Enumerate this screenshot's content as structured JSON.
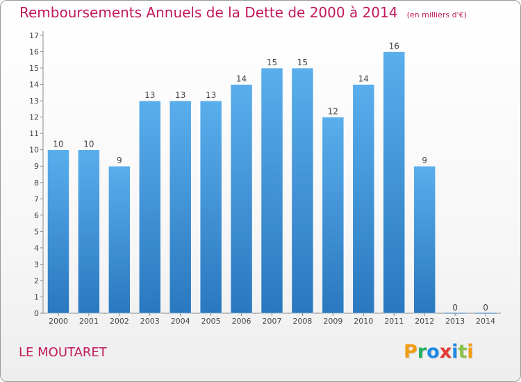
{
  "title": "Remboursements Annuels de la Dette de 2000 à 2014",
  "unit_note": "(en milliers d'€)",
  "location": "LE MOUTARET",
  "logo": {
    "text": "Proxiti",
    "letter_colors": [
      "#f39c12",
      "#27ae60",
      "#1e88e5",
      "#e53935",
      "#1e88e5",
      "#8bc34a",
      "#f39c12"
    ]
  },
  "colors": {
    "bar_top": "#5aaeec",
    "bar_bottom": "#2a78bf",
    "text": "#444444",
    "accent": "#c2185b"
  },
  "chart_data": {
    "type": "bar",
    "title": "Remboursements Annuels de la Dette de 2000 à 2014",
    "categories": [
      "2000",
      "2001",
      "2002",
      "2003",
      "2004",
      "2005",
      "2006",
      "2007",
      "2008",
      "2009",
      "2010",
      "2011",
      "2012",
      "2013",
      "2014"
    ],
    "values": [
      10,
      10,
      9,
      13,
      13,
      13,
      14,
      15,
      15,
      12,
      14,
      16,
      9,
      0,
      0
    ],
    "ylim": [
      0,
      17
    ],
    "yticks": [
      0,
      1,
      2,
      3,
      4,
      5,
      6,
      7,
      8,
      9,
      10,
      11,
      12,
      13,
      14,
      15,
      16,
      17
    ],
    "grid": false,
    "xlabel": "",
    "ylabel": ""
  }
}
